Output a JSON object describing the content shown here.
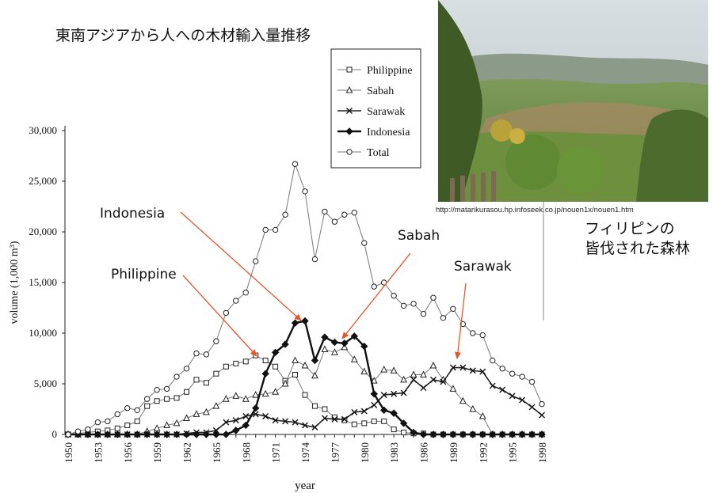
{
  "slide": {
    "title": "東南アジアから人への木材輸入量推移",
    "photo_caption_lines": [
      "フィリピンの",
      "皆伐された森林"
    ],
    "source_url": "http://matarikurasou.hp.infoseek.co.jp/nouen1x/nouen1.htm"
  },
  "annotations": {
    "indonesia": "Indonesia",
    "sabah": "Sabah",
    "sarawak": "Sarawak",
    "philippine": "Philippine",
    "arrow_color": "#e8542a"
  },
  "chart_data": {
    "type": "line",
    "xlabel": "year",
    "ylabel": "volume (1,000 m³)",
    "ylim": [
      0,
      30000
    ],
    "xlim": [
      1950,
      1998
    ],
    "y_ticks": [
      "0",
      "5,000",
      "10,000",
      "15,000",
      "20,000",
      "25,000",
      "30,000"
    ],
    "x_ticks": [
      "1950",
      "1953",
      "1956",
      "1959",
      "1962",
      "1965",
      "1968",
      "1971",
      "1974",
      "1977",
      "1980",
      "1983",
      "1986",
      "1989",
      "1992",
      "1995",
      "1998"
    ],
    "grid": false,
    "legend_position": "top-right",
    "years": [
      1950,
      1951,
      1952,
      1953,
      1954,
      1955,
      1956,
      1957,
      1958,
      1959,
      1960,
      1961,
      1962,
      1963,
      1964,
      1965,
      1966,
      1967,
      1968,
      1969,
      1970,
      1971,
      1972,
      1973,
      1974,
      1975,
      1976,
      1977,
      1978,
      1979,
      1980,
      1981,
      1982,
      1983,
      1984,
      1985,
      1986,
      1987,
      1988,
      1989,
      1990,
      1991,
      1992,
      1993,
      1994,
      1995,
      1996,
      1997,
      1998
    ],
    "series": [
      {
        "name": "Philippine",
        "marker": "square",
        "line": "thin",
        "values": [
          0,
          100,
          200,
          300,
          400,
          600,
          900,
          1300,
          2800,
          3300,
          3500,
          3600,
          4200,
          5400,
          5100,
          6000,
          6700,
          7000,
          7200,
          7800,
          7300,
          6700,
          5300,
          5900,
          3900,
          2800,
          2500,
          1700,
          1400,
          1000,
          1100,
          1300,
          1300,
          500,
          200,
          100,
          100,
          0,
          0,
          0,
          0,
          0,
          0,
          0,
          0,
          0,
          0,
          0,
          0
        ]
      },
      {
        "name": "Sabah",
        "marker": "triangle",
        "line": "thin",
        "values": [
          0,
          0,
          0,
          0,
          0,
          0,
          0,
          0,
          300,
          600,
          900,
          1100,
          1600,
          2000,
          2200,
          2800,
          3500,
          3800,
          3500,
          3900,
          4000,
          4200,
          5000,
          7300,
          6800,
          5800,
          8400,
          8100,
          8600,
          7400,
          6200,
          5300,
          6400,
          6300,
          5400,
          5900,
          5900,
          6800,
          5400,
          4500,
          3300,
          2500,
          1800,
          0,
          0,
          0,
          0,
          0,
          0
        ]
      },
      {
        "name": "Sarawak",
        "marker": "cross",
        "line": "medium",
        "values": [
          0,
          0,
          0,
          0,
          0,
          0,
          0,
          0,
          0,
          0,
          0,
          0,
          100,
          200,
          200,
          400,
          1200,
          1400,
          1800,
          2000,
          1800,
          1400,
          1300,
          1200,
          900,
          700,
          1600,
          1500,
          1500,
          2200,
          2300,
          2900,
          3900,
          4000,
          4100,
          5400,
          4600,
          5400,
          5200,
          6600,
          6600,
          6300,
          6200,
          4800,
          4400,
          3800,
          3400,
          2700,
          1900
        ]
      },
      {
        "name": "Indonesia",
        "marker": "diamond-filled",
        "line": "thick",
        "values": [
          0,
          0,
          0,
          0,
          0,
          0,
          0,
          0,
          0,
          0,
          0,
          0,
          0,
          0,
          0,
          0,
          0,
          400,
          900,
          2600,
          6000,
          8100,
          8900,
          11000,
          11200,
          7300,
          9600,
          9100,
          9000,
          9700,
          8700,
          4000,
          2400,
          2100,
          1100,
          200,
          0,
          0,
          0,
          0,
          0,
          0,
          0,
          0,
          0,
          0,
          0,
          0,
          0
        ]
      },
      {
        "name": "Total",
        "marker": "circle",
        "line": "thin",
        "values": [
          0,
          300,
          500,
          1200,
          1300,
          2000,
          2600,
          2400,
          3500,
          4400,
          4500,
          5700,
          6500,
          8000,
          7900,
          9200,
          12000,
          13200,
          14000,
          17100,
          20200,
          20200,
          21700,
          26700,
          24000,
          17300,
          22000,
          21000,
          21700,
          21900,
          18900,
          14600,
          15000,
          13700,
          12700,
          12900,
          11900,
          13500,
          11500,
          12400,
          10900,
          10000,
          9800,
          7300,
          6500,
          6000,
          5700,
          5200,
          3000
        ]
      }
    ]
  }
}
